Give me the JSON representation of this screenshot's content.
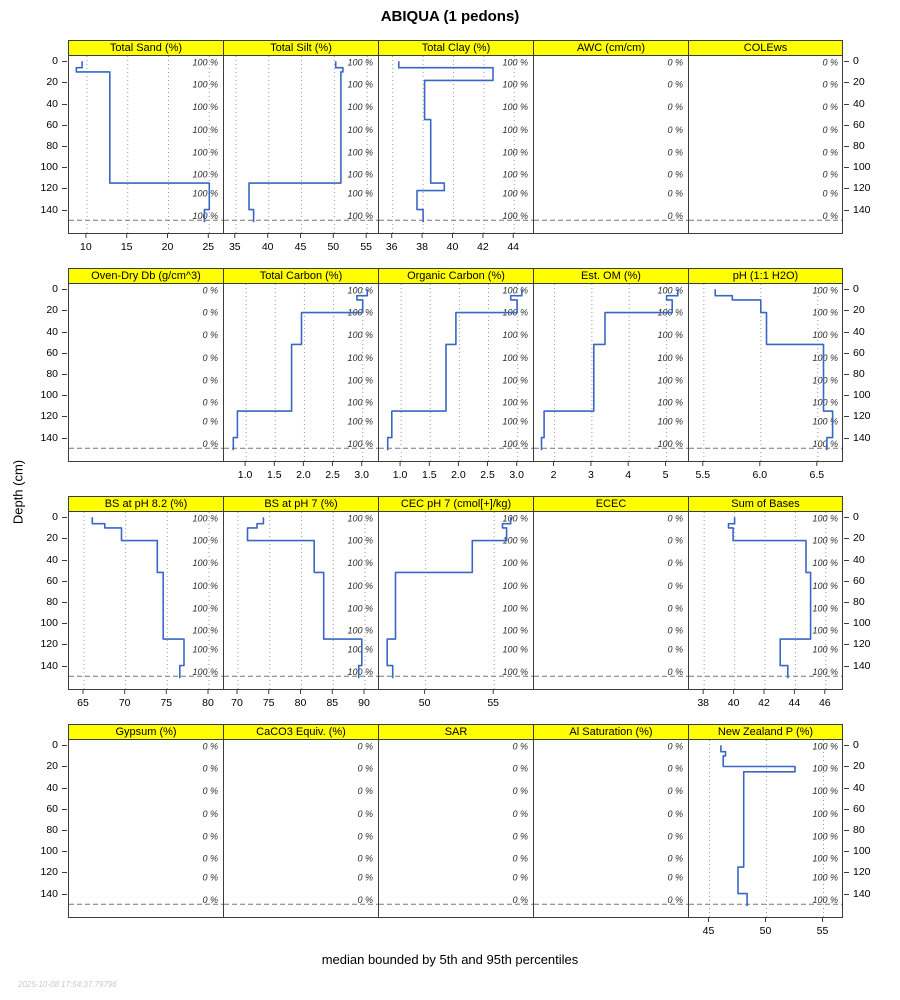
{
  "title": "ABIQUA (1 pedons)",
  "caption": "median bounded by 5th and 95th percentiles",
  "watermark": "2025-10-08 17:54:37.79796",
  "colors": {
    "strip_bg": "#ffff00",
    "line": "#3a66c8",
    "grid": "#9a9a9a",
    "border": "#3c3c3c"
  },
  "depth_axis": {
    "label": "Depth (cm)",
    "ticks": [
      0,
      20,
      40,
      60,
      80,
      100,
      120,
      140
    ],
    "range": [
      -5,
      163
    ]
  },
  "max_depth_line": 150,
  "cf_label_depths": [
    1,
    22,
    43,
    65,
    86,
    107,
    125,
    146
  ],
  "chart_data": [
    {
      "panels": [
        {
          "type": "line",
          "title": "Total Sand (%)",
          "cf": "100 %",
          "xticks": [
            10,
            15,
            20,
            25
          ],
          "xtick_labels": [
            "10",
            "15",
            "20",
            "25"
          ],
          "xrange": [
            7.8,
            26.8
          ],
          "segments": [
            [
              0,
              6,
              9.4
            ],
            [
              6,
              10,
              8.7
            ],
            [
              10,
              115,
              12.8
            ],
            [
              115,
              140,
              25.0
            ],
            [
              140,
              152,
              24.4
            ]
          ]
        },
        {
          "type": "line",
          "title": "Total Silt (%)",
          "cf": "100 %",
          "xticks": [
            35,
            40,
            45,
            50,
            55
          ],
          "xtick_labels": [
            "35",
            "40",
            "45",
            "50",
            "55"
          ],
          "xrange": [
            33.2,
            56.8
          ],
          "segments": [
            [
              0,
              6,
              50.2
            ],
            [
              6,
              10,
              51.3
            ],
            [
              10,
              115,
              51.0
            ],
            [
              115,
              140,
              37.0
            ],
            [
              140,
              152,
              37.7
            ]
          ]
        },
        {
          "type": "line",
          "title": "Total Clay (%)",
          "cf": "100 %",
          "xticks": [
            36,
            38,
            40,
            42,
            44
          ],
          "xtick_labels": [
            "36",
            "38",
            "40",
            "42",
            "44"
          ],
          "xrange": [
            35.1,
            45.3
          ],
          "segments": [
            [
              0,
              6,
              36.4
            ],
            [
              6,
              18,
              42.6
            ],
            [
              18,
              55,
              38.1
            ],
            [
              55,
              115,
              38.5
            ],
            [
              115,
              122,
              39.4
            ],
            [
              122,
              140,
              37.6
            ],
            [
              140,
              152,
              38.0
            ]
          ]
        },
        {
          "type": "empty",
          "title": "AWC (cm/cm)",
          "cf": "0 %",
          "xticks": [],
          "xtick_labels": [],
          "xrange": [
            0,
            1
          ],
          "segments": null
        },
        {
          "type": "empty",
          "title": "COLEws",
          "cf": "0 %",
          "xticks": [],
          "xtick_labels": [],
          "xrange": [
            0,
            1
          ],
          "segments": null
        }
      ]
    },
    {
      "panels": [
        {
          "type": "empty",
          "title": "Oven-Dry Db (g/cm^3)",
          "cf": "0 %",
          "xticks": [],
          "xtick_labels": [],
          "xrange": [
            0,
            1
          ],
          "segments": null
        },
        {
          "type": "line",
          "title": "Total Carbon (%)",
          "cf": "100 %",
          "xticks": [
            1.0,
            1.5,
            2.0,
            2.5,
            3.0
          ],
          "xtick_labels": [
            "1.0",
            "1.5",
            "2.0",
            "2.5",
            "3.0"
          ],
          "xrange": [
            0.62,
            3.28
          ],
          "segments": [
            [
              0,
              6,
              3.08
            ],
            [
              6,
              10,
              2.9
            ],
            [
              10,
              22,
              3.0
            ],
            [
              22,
              52,
              1.95
            ],
            [
              52,
              115,
              1.78
            ],
            [
              115,
              140,
              0.85
            ],
            [
              140,
              152,
              0.78
            ]
          ]
        },
        {
          "type": "line",
          "title": "Organic Carbon (%)",
          "cf": "100 %",
          "xticks": [
            1.0,
            1.5,
            2.0,
            2.5,
            3.0
          ],
          "xtick_labels": [
            "1.0",
            "1.5",
            "2.0",
            "2.5",
            "3.0"
          ],
          "xrange": [
            0.62,
            3.28
          ],
          "segments": [
            [
              0,
              6,
              3.07
            ],
            [
              6,
              10,
              2.88
            ],
            [
              10,
              22,
              2.99
            ],
            [
              22,
              52,
              1.94
            ],
            [
              52,
              115,
              1.77
            ],
            [
              115,
              140,
              0.84
            ],
            [
              140,
              152,
              0.77
            ]
          ]
        },
        {
          "type": "line",
          "title": "Est. OM (%)",
          "cf": "100 %",
          "xticks": [
            2,
            3,
            4,
            5
          ],
          "xtick_labels": [
            "2",
            "3",
            "4",
            "5"
          ],
          "xrange": [
            1.45,
            5.6
          ],
          "segments": [
            [
              0,
              6,
              5.3
            ],
            [
              6,
              10,
              5.0
            ],
            [
              10,
              22,
              5.15
            ],
            [
              22,
              52,
              3.35
            ],
            [
              52,
              115,
              3.05
            ],
            [
              115,
              140,
              1.72
            ],
            [
              140,
              152,
              1.65
            ]
          ]
        },
        {
          "type": "line",
          "title": "pH (1:1 H2O)",
          "cf": "100 %",
          "xticks": [
            5.5,
            6.0,
            6.5
          ],
          "xtick_labels": [
            "5.5",
            "6.0",
            "6.5"
          ],
          "xrange": [
            5.37,
            6.73
          ],
          "segments": [
            [
              0,
              6,
              5.6
            ],
            [
              6,
              10,
              5.75
            ],
            [
              10,
              22,
              6.0
            ],
            [
              22,
              52,
              6.05
            ],
            [
              52,
              115,
              6.55
            ],
            [
              115,
              140,
              6.63
            ],
            [
              140,
              152,
              6.58
            ]
          ]
        }
      ]
    },
    {
      "panels": [
        {
          "type": "line",
          "title": "BS at pH 8.2 (%)",
          "cf": "100 %",
          "xticks": [
            65,
            70,
            75,
            80
          ],
          "xtick_labels": [
            "65",
            "70",
            "75",
            "80"
          ],
          "xrange": [
            63.2,
            81.8
          ],
          "segments": [
            [
              0,
              6,
              66.0
            ],
            [
              6,
              10,
              67.5
            ],
            [
              10,
              22,
              69.5
            ],
            [
              22,
              52,
              73.8
            ],
            [
              52,
              115,
              74.5
            ],
            [
              115,
              140,
              77.0
            ],
            [
              140,
              152,
              76.5
            ]
          ]
        },
        {
          "type": "line",
          "title": "BS at pH 7 (%)",
          "cf": "100 %",
          "xticks": [
            70,
            75,
            80,
            85,
            90
          ],
          "xtick_labels": [
            "70",
            "75",
            "80",
            "85",
            "90"
          ],
          "xrange": [
            67.8,
            92.2
          ],
          "segments": [
            [
              0,
              6,
              74.0
            ],
            [
              6,
              10,
              73.0
            ],
            [
              10,
              22,
              71.5
            ],
            [
              22,
              52,
              82.0
            ],
            [
              52,
              115,
              83.5
            ],
            [
              115,
              140,
              89.5
            ],
            [
              140,
              152,
              89.0
            ]
          ]
        },
        {
          "type": "line",
          "title": "CEC pH 7 (cmol[+]/kg)",
          "cf": "100 %",
          "xticks": [
            50,
            55
          ],
          "xtick_labels": [
            "50",
            "55"
          ],
          "xrange": [
            46.6,
            57.9
          ],
          "segments": [
            [
              0,
              6,
              56.2
            ],
            [
              6,
              10,
              55.6
            ],
            [
              10,
              22,
              55.9
            ],
            [
              22,
              52,
              53.4
            ],
            [
              52,
              115,
              47.8
            ],
            [
              115,
              140,
              47.2
            ],
            [
              140,
              152,
              47.6
            ]
          ]
        },
        {
          "type": "empty",
          "title": "ECEC",
          "cf": "0 %",
          "xticks": [],
          "xtick_labels": [],
          "xrange": [
            0,
            1
          ],
          "segments": null
        },
        {
          "type": "line",
          "title": "Sum of Bases",
          "cf": "100 %",
          "xticks": [
            38,
            40,
            42,
            44,
            46
          ],
          "xtick_labels": [
            "38",
            "40",
            "42",
            "44",
            "46"
          ],
          "xrange": [
            37.0,
            47.2
          ],
          "segments": [
            [
              0,
              6,
              40.0
            ],
            [
              6,
              10,
              39.6
            ],
            [
              10,
              22,
              39.9
            ],
            [
              22,
              52,
              44.7
            ],
            [
              52,
              115,
              45.0
            ],
            [
              115,
              140,
              43.0
            ],
            [
              140,
              152,
              43.5
            ]
          ]
        }
      ]
    },
    {
      "panels": [
        {
          "type": "empty",
          "title": "Gypsum (%)",
          "cf": "0 %",
          "xticks": [],
          "xtick_labels": [],
          "xrange": [
            0,
            1
          ],
          "segments": null
        },
        {
          "type": "empty",
          "title": "CaCO3 Equiv. (%)",
          "cf": "0 %",
          "xticks": [],
          "xtick_labels": [],
          "xrange": [
            0,
            1
          ],
          "segments": null
        },
        {
          "type": "empty",
          "title": "SAR",
          "cf": "0 %",
          "xticks": [],
          "xtick_labels": [],
          "xrange": [
            0,
            1
          ],
          "segments": null
        },
        {
          "type": "empty",
          "title": "Al Saturation (%)",
          "cf": "0 %",
          "xticks": [],
          "xtick_labels": [],
          "xrange": [
            0,
            1
          ],
          "segments": null
        },
        {
          "type": "line",
          "title": "New Zealand P (%)",
          "cf": "100 %",
          "xticks": [
            45,
            50,
            55
          ],
          "xtick_labels": [
            "45",
            "50",
            "55"
          ],
          "xrange": [
            43.2,
            56.8
          ],
          "segments": [
            [
              0,
              6,
              46.0
            ],
            [
              6,
              10,
              46.4
            ],
            [
              10,
              20,
              46.2
            ],
            [
              20,
              25,
              52.5
            ],
            [
              25,
              115,
              48.0
            ],
            [
              115,
              140,
              47.5
            ],
            [
              140,
              152,
              48.3
            ]
          ]
        }
      ]
    }
  ]
}
